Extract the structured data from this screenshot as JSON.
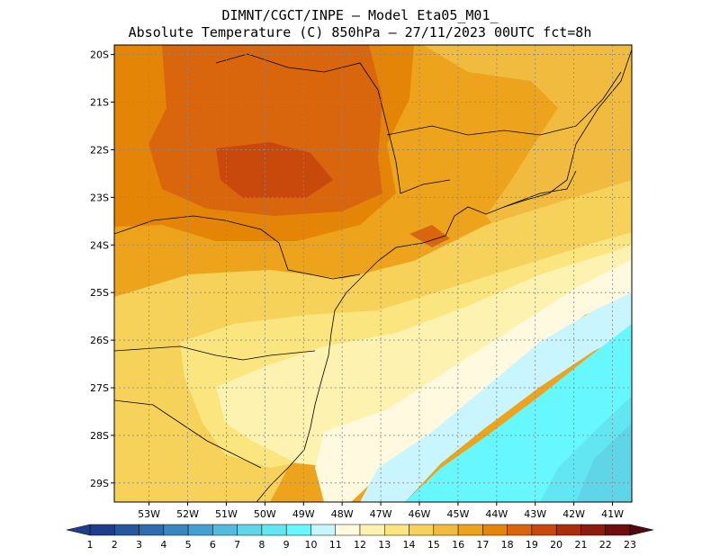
{
  "title": {
    "line1": "DIMNT/CGCT/INPE –  Model Eta05_M01_",
    "line2": "Absolute Temperature (C) 850hPa –  27/11/2023 00UTC fct=8h"
  },
  "map": {
    "lon_range": [
      -53.9,
      -40.5
    ],
    "lat_range": [
      -29.4,
      -19.8
    ],
    "lon_ticks": [
      "53W",
      "52W",
      "51W",
      "50W",
      "49W",
      "48W",
      "47W",
      "46W",
      "45W",
      "44W",
      "43W",
      "42W",
      "41W"
    ],
    "lat_ticks": [
      "20S",
      "21S",
      "22S",
      "23S",
      "24S",
      "25S",
      "26S",
      "27S",
      "28S",
      "29S"
    ],
    "grid": "dotted",
    "field": "temperature",
    "units": "C"
  },
  "colorbar": {
    "labels": [
      "1",
      "2",
      "3",
      "4",
      "5",
      "6",
      "7",
      "8",
      "9",
      "10",
      "11",
      "12",
      "13",
      "14",
      "15",
      "16",
      "17",
      "18",
      "19",
      "20",
      "21",
      "22",
      "23"
    ],
    "colors": [
      "#1f3d8c",
      "#26569e",
      "#2e6db0",
      "#3a86c2",
      "#45a0d2",
      "#53bcde",
      "#5fd6e8",
      "#62e6f2",
      "#66f7ff",
      "#c8f5ff",
      "#fffadf",
      "#fdf2b0",
      "#fae57f",
      "#f6d25a",
      "#f0bb3f",
      "#eda41c",
      "#e48508",
      "#d9650c",
      "#c9490c",
      "#aa2d0c",
      "#8e1c0e",
      "#6f0d0f"
    ]
  }
}
